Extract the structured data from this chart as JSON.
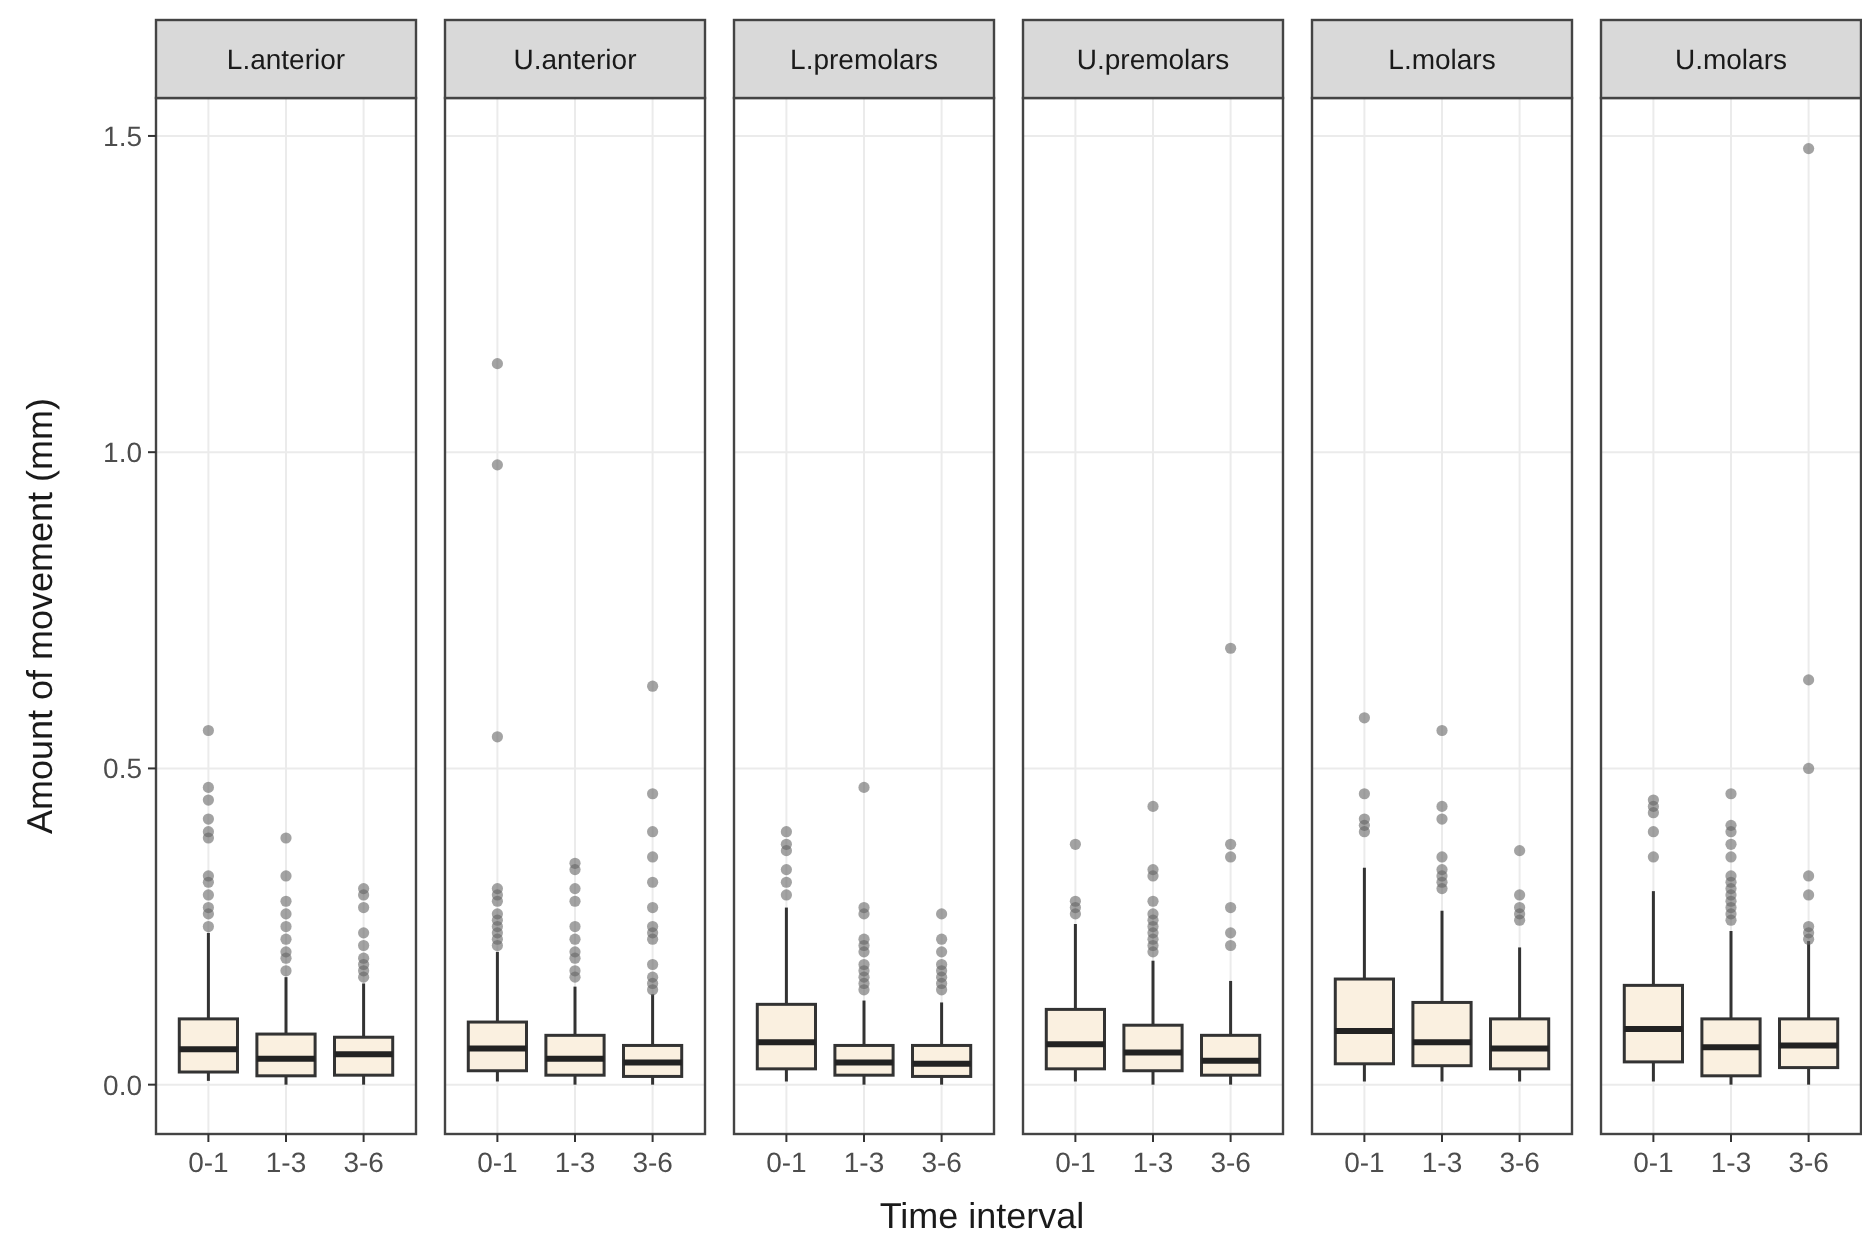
{
  "chart_data": [
    {
      "type": "box",
      "title": "L.anterior",
      "ylabel": "Amount of movement (mm)",
      "categories": [
        "0-1",
        "1-3",
        "3-6"
      ],
      "color": "#faf0e0",
      "grid": true,
      "ylim": [
        -0.078,
        1.56
      ],
      "yticks": [
        {
          "value": 0,
          "label": "0.0"
        },
        {
          "value": 0.5,
          "label": "0.5"
        },
        {
          "value": 1,
          "label": "1.0"
        },
        {
          "value": 1.5,
          "label": "1.5"
        }
      ],
      "boxes": [
        {
          "low": 0.006,
          "q1": 0.02,
          "median": 0.056,
          "q3": 0.104,
          "high": 0.24,
          "outliers": [
            0.56,
            0.47,
            0.45,
            0.42,
            0.4,
            0.39,
            0.33,
            0.32,
            0.3,
            0.28,
            0.27,
            0.25
          ]
        },
        {
          "low": 0,
          "q1": 0.014,
          "median": 0.041,
          "q3": 0.08,
          "high": 0.17,
          "outliers": [
            0.39,
            0.33,
            0.29,
            0.27,
            0.25,
            0.23,
            0.21,
            0.2,
            0.18
          ]
        },
        {
          "low": 0,
          "q1": 0.015,
          "median": 0.048,
          "q3": 0.075,
          "high": 0.16,
          "outliers": [
            0.31,
            0.3,
            0.28,
            0.24,
            0.22,
            0.2,
            0.19,
            0.18,
            0.17
          ]
        }
      ]
    },
    {
      "type": "box",
      "title": "U.anterior",
      "categories": [
        "0-1",
        "1-3",
        "3-6"
      ],
      "color": "#faf0e0",
      "grid": true,
      "tick_labels": "x",
      "ylim": [
        -0.078,
        1.56
      ],
      "yticks": [
        0,
        0.5,
        1,
        1.5
      ],
      "boxes": [
        {
          "low": 0.005,
          "q1": 0.022,
          "median": 0.057,
          "q3": 0.099,
          "high": 0.21,
          "outliers": [
            1.14,
            0.98,
            0.55,
            0.31,
            0.3,
            0.29,
            0.27,
            0.26,
            0.25,
            0.24,
            0.23,
            0.22
          ]
        },
        {
          "low": 0,
          "q1": 0.015,
          "median": 0.041,
          "q3": 0.078,
          "high": 0.155,
          "outliers": [
            0.35,
            0.34,
            0.31,
            0.29,
            0.25,
            0.23,
            0.21,
            0.2,
            0.18,
            0.17
          ]
        },
        {
          "low": 0,
          "q1": 0.013,
          "median": 0.035,
          "q3": 0.062,
          "high": 0.143,
          "outliers": [
            0.63,
            0.46,
            0.4,
            0.36,
            0.32,
            0.28,
            0.25,
            0.24,
            0.23,
            0.19,
            0.17,
            0.16,
            0.15
          ]
        }
      ]
    },
    {
      "type": "box",
      "title": "L.premolars",
      "xlabel": "Time interval",
      "categories": [
        "0-1",
        "1-3",
        "3-6"
      ],
      "color": "#faf0e0",
      "grid": true,
      "tick_labels": "x",
      "ylim": [
        -0.078,
        1.56
      ],
      "yticks": [
        0,
        0.5,
        1,
        1.5
      ],
      "boxes": [
        {
          "low": 0.005,
          "q1": 0.025,
          "median": 0.067,
          "q3": 0.127,
          "high": 0.28,
          "outliers": [
            0.4,
            0.38,
            0.37,
            0.34,
            0.32,
            0.3
          ]
        },
        {
          "low": 0,
          "q1": 0.015,
          "median": 0.035,
          "q3": 0.062,
          "high": 0.133,
          "outliers": [
            0.47,
            0.28,
            0.27,
            0.23,
            0.22,
            0.21,
            0.19,
            0.18,
            0.17,
            0.16,
            0.15
          ]
        },
        {
          "low": 0,
          "q1": 0.013,
          "median": 0.033,
          "q3": 0.062,
          "high": 0.13,
          "outliers": [
            0.27,
            0.23,
            0.21,
            0.19,
            0.18,
            0.17,
            0.16,
            0.15
          ]
        }
      ]
    },
    {
      "type": "box",
      "title": "U.premolars",
      "categories": [
        "0-1",
        "1-3",
        "3-6"
      ],
      "color": "#faf0e0",
      "grid": true,
      "tick_labels": "x",
      "ylim": [
        -0.078,
        1.56
      ],
      "yticks": [
        0,
        0.5,
        1,
        1.5
      ],
      "boxes": [
        {
          "low": 0.005,
          "q1": 0.025,
          "median": 0.064,
          "q3": 0.119,
          "high": 0.254,
          "outliers": [
            0.38,
            0.29,
            0.28,
            0.27
          ]
        },
        {
          "low": 0,
          "q1": 0.022,
          "median": 0.051,
          "q3": 0.094,
          "high": 0.196,
          "outliers": [
            0.44,
            0.34,
            0.33,
            0.29,
            0.27,
            0.26,
            0.25,
            0.24,
            0.23,
            0.22,
            0.21
          ]
        },
        {
          "low": 0,
          "q1": 0.015,
          "median": 0.038,
          "q3": 0.078,
          "high": 0.164,
          "outliers": [
            0.69,
            0.38,
            0.36,
            0.28,
            0.24,
            0.22
          ]
        }
      ]
    },
    {
      "type": "box",
      "title": "L.molars",
      "categories": [
        "0-1",
        "1-3",
        "3-6"
      ],
      "color": "#faf0e0",
      "grid": true,
      "tick_labels": "x",
      "ylim": [
        -0.078,
        1.56
      ],
      "yticks": [
        0,
        0.5,
        1,
        1.5
      ],
      "boxes": [
        {
          "low": 0.005,
          "q1": 0.033,
          "median": 0.085,
          "q3": 0.167,
          "high": 0.343,
          "outliers": [
            0.58,
            0.46,
            0.42,
            0.41,
            0.4
          ]
        },
        {
          "low": 0.005,
          "q1": 0.03,
          "median": 0.067,
          "q3": 0.13,
          "high": 0.275,
          "outliers": [
            0.56,
            0.44,
            0.42,
            0.36,
            0.34,
            0.33,
            0.32,
            0.31
          ]
        },
        {
          "low": 0.005,
          "q1": 0.025,
          "median": 0.057,
          "q3": 0.104,
          "high": 0.217,
          "outliers": [
            0.37,
            0.3,
            0.28,
            0.27,
            0.26
          ]
        }
      ]
    },
    {
      "type": "box",
      "title": "U.molars",
      "categories": [
        "0-1",
        "1-3",
        "3-6"
      ],
      "color": "#faf0e0",
      "grid": true,
      "tick_labels": "x",
      "ylim": [
        -0.078,
        1.56
      ],
      "yticks": [
        0,
        0.5,
        1,
        1.5
      ],
      "boxes": [
        {
          "low": 0.005,
          "q1": 0.036,
          "median": 0.088,
          "q3": 0.157,
          "high": 0.306,
          "outliers": [
            0.45,
            0.44,
            0.43,
            0.4,
            0.36
          ]
        },
        {
          "low": 0,
          "q1": 0.014,
          "median": 0.059,
          "q3": 0.104,
          "high": 0.243,
          "outliers": [
            0.46,
            0.41,
            0.4,
            0.38,
            0.36,
            0.33,
            0.32,
            0.31,
            0.3,
            0.29,
            0.28,
            0.27,
            0.26
          ]
        },
        {
          "low": 0,
          "q1": 0.027,
          "median": 0.062,
          "q3": 0.104,
          "high": 0.227,
          "outliers": [
            1.48,
            0.64,
            0.5,
            0.33,
            0.3,
            0.25,
            0.24,
            0.23
          ]
        }
      ]
    }
  ]
}
